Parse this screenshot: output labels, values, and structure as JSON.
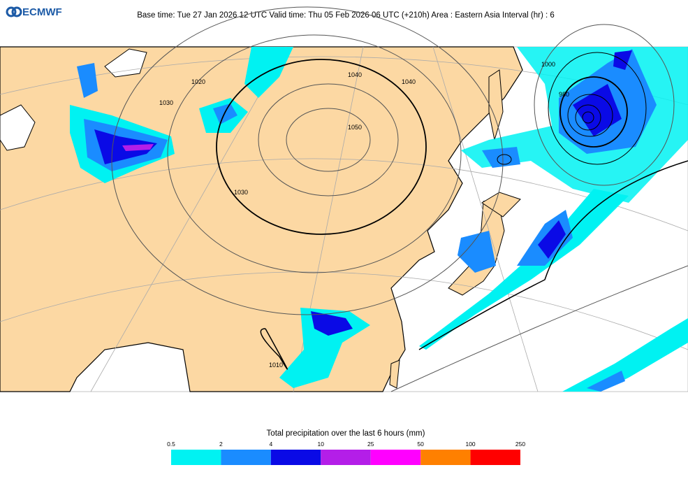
{
  "header": {
    "logo": "ECMWF",
    "title": "Base time: Tue 27 Jan 2026 12 UTC Valid time: Thu 05 Feb 2026 06 UTC (+210h) Area : Eastern Asia Interval (hr) : 6"
  },
  "map": {
    "contour_labels": [
      "1050",
      "1040",
      "1040",
      "1030",
      "1030",
      "1020",
      "1000",
      "980",
      "1010"
    ]
  },
  "legend": {
    "title": "Total precipitation over the last 6 hours (mm)",
    "ticks": [
      "0.5",
      "2",
      "4",
      "10",
      "25",
      "50",
      "100",
      "250"
    ],
    "colors": [
      "#00f2f2",
      "#1a8cff",
      "#0a0ae6",
      "#b41ee8",
      "#ff00ff",
      "#ff8000",
      "#ff0000"
    ]
  }
}
